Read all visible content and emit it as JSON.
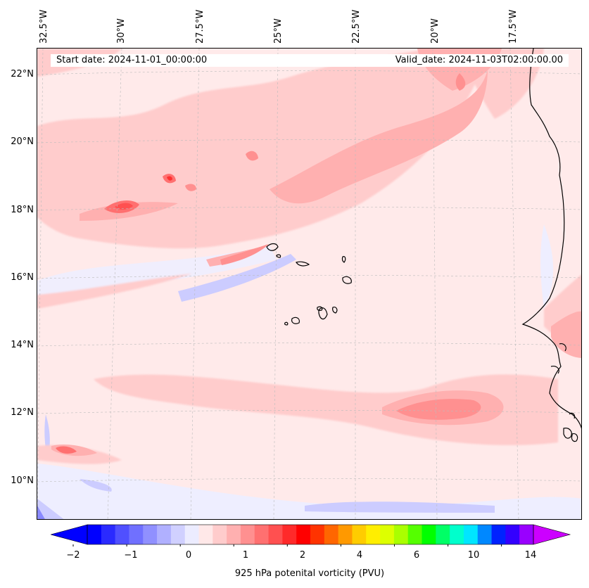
{
  "map": {
    "start_date": "Start date: 2024-11-01_00:00:00",
    "valid_date": "Valid_date: 2024-11-03T02:00:00.00",
    "longitude_labels": [
      "32.5°W",
      "30°W",
      "27.5°W",
      "25°W",
      "22.5°W",
      "20°W",
      "17.5°W"
    ],
    "latitude_labels": [
      "22°N",
      "20°N",
      "18°N",
      "16°N",
      "14°N",
      "12°N",
      "10°N"
    ]
  },
  "colorbar": {
    "label": "925 hPa potenital vorticity (PVU)",
    "tick_labels": [
      "−2",
      "−1",
      "0",
      "1",
      "2",
      "4",
      "6",
      "10",
      "14"
    ],
    "colors": [
      "#0000ff",
      "#2a2aff",
      "#5050ff",
      "#7070ff",
      "#9090ff",
      "#b0b0ff",
      "#d0d0ff",
      "#ececff",
      "#ffe8e8",
      "#ffcccc",
      "#ffb0b0",
      "#ff9090",
      "#ff7070",
      "#ff5050",
      "#ff2a2a",
      "#ff0000",
      "#ff3300",
      "#ff6600",
      "#ff9900",
      "#ffcc00",
      "#ffee00",
      "#ddff00",
      "#aaff00",
      "#55ff00",
      "#00ff00",
      "#00ff66",
      "#00ffcc",
      "#00e6ff",
      "#0088ff",
      "#0022ff",
      "#3300ff",
      "#9900ff"
    ],
    "extend_low_color": "#0000ff",
    "extend_high_color": "#cc00ff"
  }
}
